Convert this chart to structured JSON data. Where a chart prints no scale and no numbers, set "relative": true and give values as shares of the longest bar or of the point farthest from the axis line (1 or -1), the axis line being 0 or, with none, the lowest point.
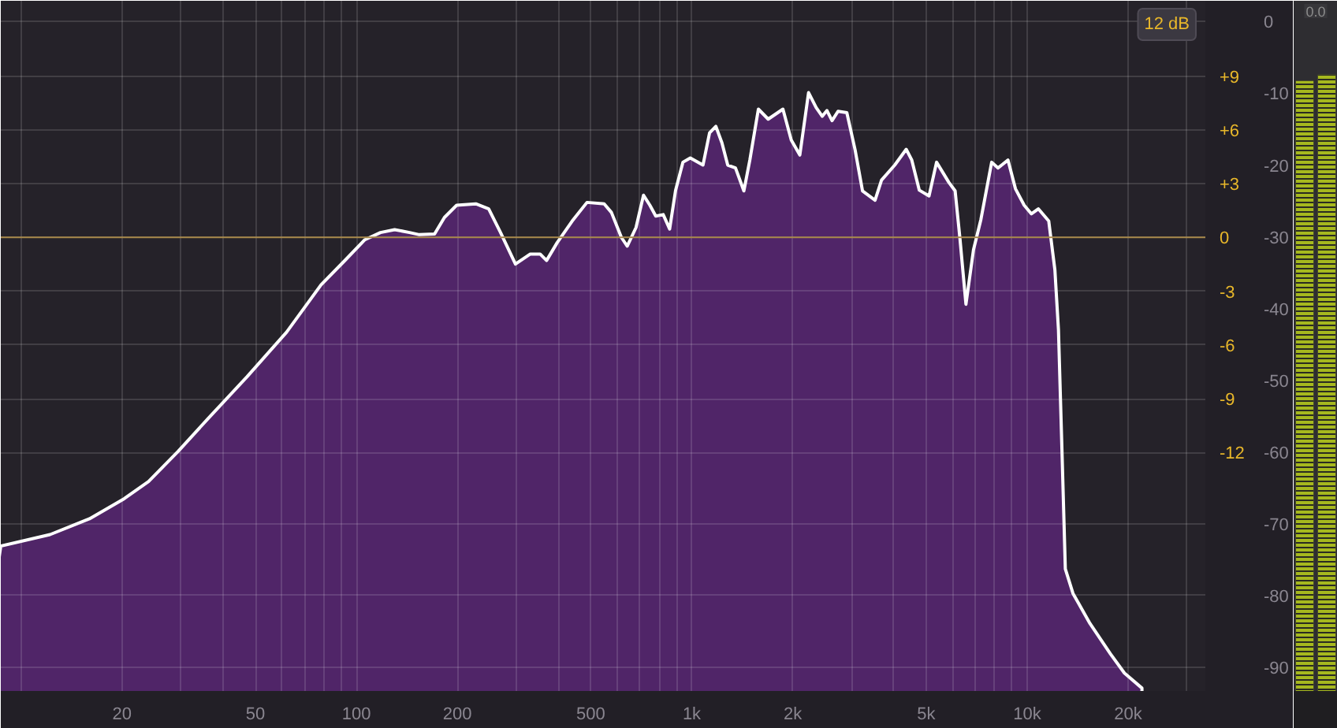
{
  "chart_data": [
    {
      "type": "area",
      "log": "x",
      "x": [
        8.7,
        12.2,
        16,
        20.3,
        24,
        29.4,
        36,
        47.2,
        61.9,
        78.4,
        92.8,
        106,
        118,
        130,
        144,
        154,
        171,
        183,
        199,
        227,
        248,
        269,
        298,
        330,
        353,
        369,
        397,
        440,
        487,
        548,
        576,
        617,
        642,
        682,
        718,
        750,
        781,
        822,
        859,
        895,
        941,
        990,
        1080,
        1130,
        1180,
        1230,
        1280,
        1350,
        1430,
        1490,
        1580,
        1690,
        1870,
        1980,
        2100,
        2230,
        2350,
        2450,
        2530,
        2620,
        2730,
        2900,
        3070,
        3230,
        3520,
        3680,
        4030,
        4360,
        4530,
        4770,
        5100,
        5370,
        5840,
        6100,
        6310,
        6570,
        6920,
        7280,
        7840,
        8190,
        8770,
        9230,
        9800,
        10300,
        10800,
        11600,
        12100,
        12400,
        12700,
        13000,
        13700,
        15400,
        17700,
        19500,
        22000
      ],
      "values": [
        -73.1,
        -71.5,
        -69.3,
        -66.5,
        -64.1,
        -59.9,
        -55.4,
        -49.5,
        -43.3,
        -36.7,
        -33.2,
        -30.4,
        -29.4,
        -29.0,
        -29.4,
        -29.7,
        -29.6,
        -27.3,
        -25.6,
        -25.4,
        -26.1,
        -29.4,
        -33.8,
        -32.4,
        -32.4,
        -33.3,
        -30.8,
        -27.8,
        -25.2,
        -25.4,
        -26.6,
        -30.1,
        -31.3,
        -28.7,
        -24.2,
        -25.6,
        -27.1,
        -26.9,
        -28.9,
        -23.5,
        -19.6,
        -19.0,
        -20.0,
        -15.5,
        -14.6,
        -16.9,
        -20.0,
        -20.4,
        -23.6,
        -19.3,
        -12.2,
        -13.6,
        -12.2,
        -16.5,
        -18.6,
        -9.9,
        -12.0,
        -13.2,
        -12.4,
        -13.8,
        -12.5,
        -12.7,
        -17.9,
        -23.6,
        -24.9,
        -22.1,
        -20.0,
        -17.8,
        -19.3,
        -23.5,
        -24.3,
        -19.6,
        -22.4,
        -23.6,
        -30.4,
        -39.4,
        -31.8,
        -27.6,
        -19.6,
        -20.4,
        -19.3,
        -23.3,
        -25.6,
        -26.8,
        -26.1,
        -27.8,
        -34.6,
        -42.9,
        -59.6,
        -76.3,
        -79.7,
        -83.9,
        -88.1,
        -90.8,
        -92.9
      ],
      "color": "#502568",
      "xlim": [
        8.7,
        34000
      ],
      "xticks": [
        {
          "value": 10,
          "label": null
        },
        20,
        {
          "value": 30,
          "label": null
        },
        {
          "value": 40,
          "label": null
        },
        50,
        {
          "value": 60,
          "label": null
        },
        {
          "value": 70,
          "label": null
        },
        {
          "value": 80,
          "label": null
        },
        {
          "value": 90,
          "label": null
        },
        100,
        200,
        {
          "value": 300,
          "label": null
        },
        {
          "value": 400,
          "label": null
        },
        500,
        {
          "value": 600,
          "label": null
        },
        {
          "value": 700,
          "label": null
        },
        {
          "value": 800,
          "label": null
        },
        {
          "value": 900,
          "label": null
        },
        {
          "value": 1000,
          "label": "1k"
        },
        {
          "value": 2000,
          "label": "2k"
        },
        {
          "value": 3000,
          "label": null
        },
        {
          "value": 4000,
          "label": null
        },
        {
          "value": 5000,
          "label": "5k"
        },
        {
          "value": 6000,
          "label": null
        },
        {
          "value": 7000,
          "label": null
        },
        {
          "value": 8000,
          "label": null
        },
        {
          "value": 9000,
          "label": null
        },
        {
          "value": 10000,
          "label": "10k"
        },
        {
          "value": 20000,
          "label": "20k"
        },
        {
          "value": 30000,
          "label": null
        }
      ],
      "ylim": [
        -93.3,
        2.9
      ],
      "yticks": [
        0,
        -10,
        -20,
        -30,
        -40,
        -50,
        -60,
        -70,
        -80,
        -90
      ],
      "y2lim": [
        -25.3,
        13.2
      ],
      "y2ticks": [
        {
          "value": 9,
          "label": "+9"
        },
        {
          "value": 6,
          "label": "+6"
        },
        {
          "value": 3,
          "label": "+3"
        },
        0,
        -3,
        -6,
        -9,
        -12
      ],
      "grid": true,
      "ref_lines": [
        {
          "axis": "y2",
          "value": 0,
          "color": "#a8894a"
        }
      ],
      "annotations": [
        "12 dB"
      ]
    },
    {
      "type": "bar",
      "categories": [
        null,
        null
      ],
      "values": [
        0.99,
        1
      ],
      "color": "#a6b81e",
      "relative": true,
      "annotations": [
        "0.0"
      ]
    }
  ]
}
